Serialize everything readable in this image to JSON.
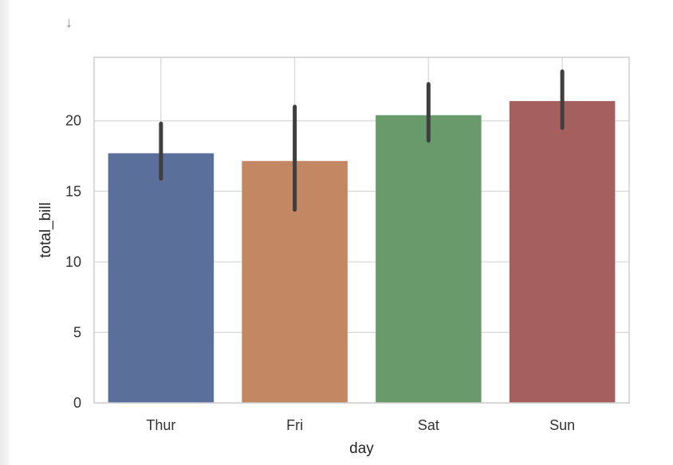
{
  "scroll_arrow_glyph": "↓",
  "chart_data": {
    "type": "bar",
    "categories": [
      "Thur",
      "Fri",
      "Sat",
      "Sun"
    ],
    "values": [
      17.7,
      17.15,
      20.4,
      21.4
    ],
    "error_bars": [
      {
        "low": 15.9,
        "high": 19.8
      },
      {
        "low": 13.7,
        "high": 21.0
      },
      {
        "low": 18.6,
        "high": 22.6
      },
      {
        "low": 19.5,
        "high": 23.5
      }
    ],
    "colors": [
      "#5b6f9b",
      "#c38763",
      "#699a6c",
      "#a65f5f"
    ],
    "error_bar_color": "#3f3f3f",
    "xlabel": "day",
    "ylabel": "total_bill",
    "ylim": [
      0,
      24.5
    ],
    "yticks": [
      0,
      5,
      10,
      15,
      20
    ],
    "grid": true,
    "background": "#ffffff",
    "grid_color": "#d9d9d9"
  }
}
